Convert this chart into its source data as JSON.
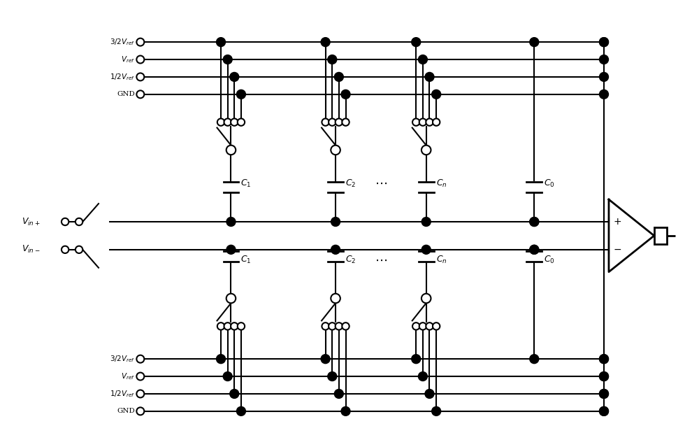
{
  "bg_color": "#ffffff",
  "lw": 1.5,
  "lw_thick": 2.0,
  "fig_width": 10.0,
  "fig_height": 6.39,
  "top_ref_labels": [
    "$3/2V_{ref}$",
    "$V_{ref}$",
    "$1/2V_{ref}$",
    "GND"
  ],
  "bot_ref_labels": [
    "$3/2V_{ref}$",
    "$V_{ref}$",
    "$1/2V_{ref}$",
    "GND"
  ],
  "cap_labels_top": [
    "$C_1$",
    "$C_2$",
    "$C_n$",
    "$C_0$"
  ],
  "cap_labels_bot": [
    "$C_1$",
    "$C_2$",
    "$C_n$",
    "$C_0$"
  ],
  "vin_plus": "$V_{in+}$",
  "vin_minus": "$V_{in-}$"
}
